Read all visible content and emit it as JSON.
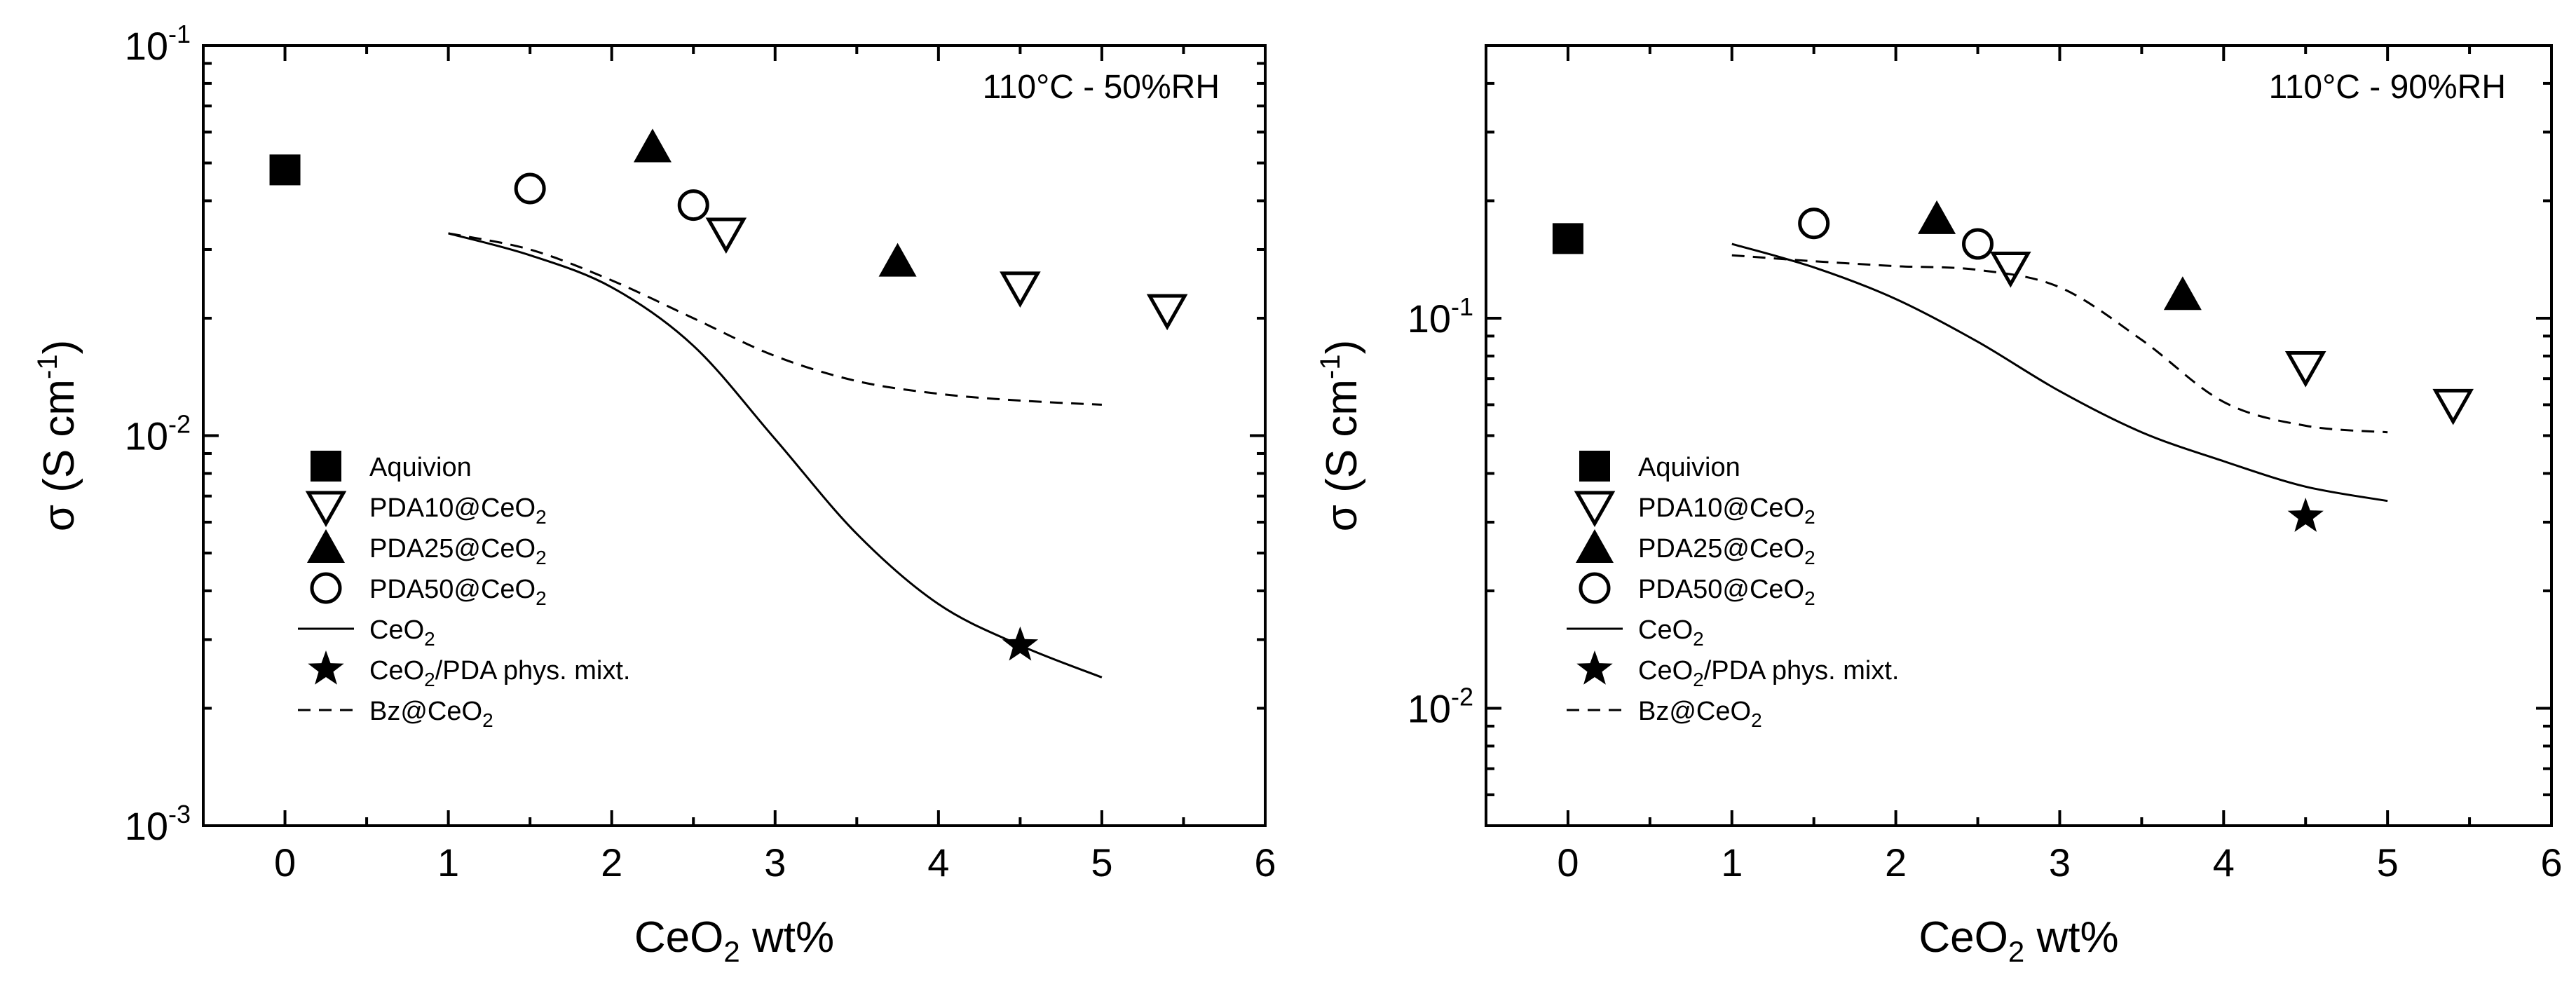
{
  "chart_data": [
    {
      "type": "scatter",
      "title": "",
      "annotation": "110°C - 50%RH",
      "xlabel": {
        "base": "CeO",
        "sub": "2",
        "rest": " wt%"
      },
      "ylabel": {
        "base": "σ (S cm",
        "sup": "-1",
        "close": ")"
      },
      "yscale": "log",
      "xlim": [
        -0.5,
        6
      ],
      "ylim": [
        0.001,
        0.1
      ],
      "xticks": [
        "0",
        "1",
        "2",
        "3",
        "4",
        "5",
        "6"
      ],
      "yticks": [
        {
          "value": 0.001,
          "base": "10",
          "exp": "-3"
        },
        {
          "value": 0.01,
          "base": "10",
          "exp": "-2"
        },
        {
          "value": 0.1,
          "base": "10",
          "exp": "-1"
        }
      ],
      "series": [
        {
          "name": "Aquivion",
          "sub": "",
          "after": "",
          "marker": "filled-square",
          "x": [
            0
          ],
          "y": [
            0.048
          ]
        },
        {
          "name": "PDA10@CeO",
          "sub": "2",
          "after": "",
          "marker": "open-triangle-down",
          "x": [
            2.7,
            4.5,
            5.4
          ],
          "y": [
            0.033,
            0.024,
            0.021
          ]
        },
        {
          "name": "PDA25@CeO",
          "sub": "2",
          "after": "",
          "marker": "filled-triangle-up",
          "x": [
            2.25,
            3.75
          ],
          "y": [
            0.055,
            0.028
          ]
        },
        {
          "name": "PDA50@CeO",
          "sub": "2",
          "after": "",
          "marker": "open-circle",
          "x": [
            1.5,
            2.5
          ],
          "y": [
            0.043,
            0.039
          ]
        },
        {
          "name": "CeO",
          "sub": "2",
          "after": "",
          "marker": "solid-line",
          "x": [
            1,
            1.5,
            2,
            2.5,
            3,
            3.5,
            4,
            4.5,
            5
          ],
          "y": [
            0.033,
            0.029,
            0.024,
            0.017,
            0.0098,
            0.0056,
            0.0037,
            0.0029,
            0.0024
          ]
        },
        {
          "name": "CeO",
          "sub": "2",
          "after": "/PDA phys. mixt.",
          "marker": "filled-star",
          "x": [
            4.5
          ],
          "y": [
            0.0029
          ]
        },
        {
          "name": "Bz@CeO",
          "sub": "2",
          "after": "",
          "marker": "dashed-line",
          "x": [
            1,
            1.5,
            2,
            2.5,
            3,
            3.5,
            4,
            4.5,
            5
          ],
          "y": [
            0.033,
            0.03,
            0.025,
            0.02,
            0.016,
            0.0138,
            0.0128,
            0.0123,
            0.012
          ]
        }
      ],
      "legend_position": "lower-left"
    },
    {
      "type": "scatter",
      "title": "",
      "annotation": "110°C - 90%RH",
      "xlabel": {
        "base": "CeO",
        "sub": "2",
        "rest": " wt%"
      },
      "ylabel": {
        "base": "σ (S cm",
        "sup": "-1",
        "close": ")"
      },
      "yscale": "log",
      "xlim": [
        -0.5,
        6
      ],
      "ylim": [
        0.005,
        0.5
      ],
      "xticks": [
        "0",
        "1",
        "2",
        "3",
        "4",
        "5",
        "6"
      ],
      "yticks": [
        {
          "value": 0.01,
          "base": "10",
          "exp": "-2"
        },
        {
          "value": 0.1,
          "base": "10",
          "exp": "-1"
        }
      ],
      "series": [
        {
          "name": "Aquivion",
          "sub": "",
          "after": "",
          "marker": "filled-square",
          "x": [
            0
          ],
          "y": [
            0.16
          ]
        },
        {
          "name": "PDA10@CeO",
          "sub": "2",
          "after": "",
          "marker": "open-triangle-down",
          "x": [
            2.7,
            4.5,
            5.4
          ],
          "y": [
            0.135,
            0.075,
            0.06
          ]
        },
        {
          "name": "PDA25@CeO",
          "sub": "2",
          "after": "",
          "marker": "filled-triangle-up",
          "x": [
            2.25,
            3.75
          ],
          "y": [
            0.18,
            0.115
          ]
        },
        {
          "name": "PDA50@CeO",
          "sub": "2",
          "after": "",
          "marker": "open-circle",
          "x": [
            1.5,
            2.5
          ],
          "y": [
            0.175,
            0.155
          ]
        },
        {
          "name": "CeO",
          "sub": "2",
          "after": "",
          "marker": "solid-line",
          "x": [
            1,
            1.5,
            2,
            2.5,
            3,
            3.5,
            4,
            4.5,
            5
          ],
          "y": [
            0.155,
            0.135,
            0.112,
            0.087,
            0.065,
            0.051,
            0.043,
            0.037,
            0.034
          ]
        },
        {
          "name": "CeO",
          "sub": "2",
          "after": "/PDA phys. mixt.",
          "marker": "filled-star",
          "x": [
            4.5
          ],
          "y": [
            0.031
          ]
        },
        {
          "name": "Bz@CeO",
          "sub": "2",
          "after": "",
          "marker": "dashed-line",
          "x": [
            1,
            1.5,
            2,
            2.5,
            3,
            3.5,
            4,
            4.5,
            5
          ],
          "y": [
            0.145,
            0.14,
            0.136,
            0.133,
            0.12,
            0.088,
            0.061,
            0.053,
            0.051
          ]
        }
      ],
      "legend_position": "lower-left"
    }
  ]
}
